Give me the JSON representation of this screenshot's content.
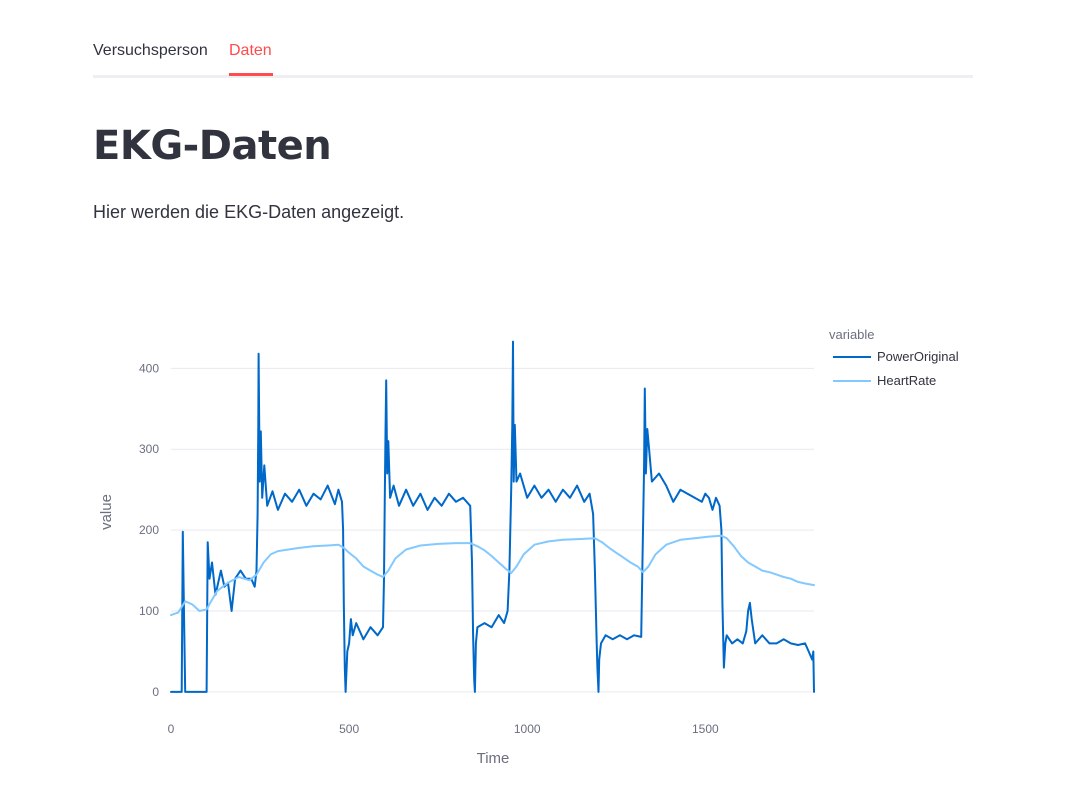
{
  "tabs": [
    {
      "label": "Versuchsperson",
      "active": false
    },
    {
      "label": "Daten",
      "active": true
    }
  ],
  "colors": {
    "accent": "#ff4b4b",
    "text": "#31333f",
    "power": "#0068c9",
    "heartrate": "#83c9ff",
    "grid": "#e6e9ef"
  },
  "main": {
    "title": "EKG-Daten",
    "text": "Hier werden die EKG-Daten angezeigt."
  },
  "chart_data": {
    "type": "line",
    "title": "",
    "xlabel": "Time",
    "ylabel": "value",
    "xlim": [
      0,
      1805
    ],
    "ylim": [
      -10,
      435
    ],
    "xticks": [
      0,
      500,
      1000,
      1500
    ],
    "yticks": [
      0,
      100,
      200,
      300,
      400
    ],
    "grid": true,
    "legend_title": "variable",
    "legend_position": "top-right",
    "series": [
      {
        "name": "PowerOriginal",
        "color": "#0068c9",
        "points": [
          [
            0,
            0
          ],
          [
            30,
            0
          ],
          [
            33,
            198
          ],
          [
            37,
            80
          ],
          [
            40,
            0
          ],
          [
            100,
            0
          ],
          [
            103,
            185
          ],
          [
            108,
            140
          ],
          [
            115,
            160
          ],
          [
            125,
            120
          ],
          [
            140,
            150
          ],
          [
            150,
            130
          ],
          [
            160,
            135
          ],
          [
            170,
            100
          ],
          [
            180,
            140
          ],
          [
            195,
            150
          ],
          [
            210,
            140
          ],
          [
            225,
            140
          ],
          [
            235,
            130
          ],
          [
            240,
            150
          ],
          [
            243,
            220
          ],
          [
            245,
            330
          ],
          [
            246,
            418
          ],
          [
            249,
            260
          ],
          [
            252,
            322
          ],
          [
            256,
            240
          ],
          [
            262,
            280
          ],
          [
            270,
            230
          ],
          [
            285,
            248
          ],
          [
            300,
            225
          ],
          [
            320,
            245
          ],
          [
            340,
            235
          ],
          [
            360,
            250
          ],
          [
            380,
            230
          ],
          [
            400,
            245
          ],
          [
            420,
            238
          ],
          [
            440,
            255
          ],
          [
            460,
            232
          ],
          [
            470,
            250
          ],
          [
            480,
            235
          ],
          [
            483,
            200
          ],
          [
            485,
            110
          ],
          [
            488,
            30
          ],
          [
            490,
            0
          ],
          [
            495,
            50
          ],
          [
            500,
            60
          ],
          [
            505,
            90
          ],
          [
            510,
            70
          ],
          [
            520,
            85
          ],
          [
            540,
            65
          ],
          [
            560,
            80
          ],
          [
            580,
            70
          ],
          [
            595,
            80
          ],
          [
            598,
            140
          ],
          [
            600,
            230
          ],
          [
            602,
            320
          ],
          [
            604,
            385
          ],
          [
            607,
            270
          ],
          [
            610,
            310
          ],
          [
            615,
            240
          ],
          [
            625,
            255
          ],
          [
            640,
            230
          ],
          [
            660,
            250
          ],
          [
            680,
            230
          ],
          [
            700,
            245
          ],
          [
            720,
            225
          ],
          [
            740,
            240
          ],
          [
            760,
            230
          ],
          [
            780,
            245
          ],
          [
            800,
            235
          ],
          [
            820,
            240
          ],
          [
            840,
            230
          ],
          [
            845,
            160
          ],
          [
            848,
            70
          ],
          [
            851,
            15
          ],
          [
            853,
            0
          ],
          [
            856,
            60
          ],
          [
            860,
            80
          ],
          [
            880,
            85
          ],
          [
            900,
            80
          ],
          [
            920,
            95
          ],
          [
            935,
            85
          ],
          [
            945,
            100
          ],
          [
            950,
            150
          ],
          [
            955,
            250
          ],
          [
            958,
            330
          ],
          [
            960,
            433
          ],
          [
            962,
            260
          ],
          [
            965,
            330
          ],
          [
            970,
            260
          ],
          [
            980,
            270
          ],
          [
            1000,
            240
          ],
          [
            1020,
            255
          ],
          [
            1040,
            240
          ],
          [
            1060,
            250
          ],
          [
            1080,
            235
          ],
          [
            1100,
            250
          ],
          [
            1120,
            240
          ],
          [
            1140,
            255
          ],
          [
            1160,
            235
          ],
          [
            1175,
            245
          ],
          [
            1185,
            220
          ],
          [
            1190,
            150
          ],
          [
            1195,
            60
          ],
          [
            1197,
            30
          ],
          [
            1200,
            0
          ],
          [
            1202,
            40
          ],
          [
            1207,
            60
          ],
          [
            1220,
            70
          ],
          [
            1240,
            65
          ],
          [
            1260,
            70
          ],
          [
            1280,
            65
          ],
          [
            1300,
            70
          ],
          [
            1320,
            68
          ],
          [
            1322,
            120
          ],
          [
            1325,
            200
          ],
          [
            1328,
            280
          ],
          [
            1330,
            375
          ],
          [
            1333,
            270
          ],
          [
            1337,
            325
          ],
          [
            1342,
            300
          ],
          [
            1350,
            260
          ],
          [
            1370,
            270
          ],
          [
            1390,
            255
          ],
          [
            1410,
            235
          ],
          [
            1430,
            250
          ],
          [
            1450,
            245
          ],
          [
            1470,
            240
          ],
          [
            1490,
            235
          ],
          [
            1500,
            245
          ],
          [
            1510,
            240
          ],
          [
            1520,
            225
          ],
          [
            1530,
            240
          ],
          [
            1540,
            230
          ],
          [
            1545,
            200
          ],
          [
            1548,
            110
          ],
          [
            1552,
            30
          ],
          [
            1556,
            60
          ],
          [
            1560,
            70
          ],
          [
            1575,
            60
          ],
          [
            1590,
            65
          ],
          [
            1605,
            60
          ],
          [
            1615,
            75
          ],
          [
            1620,
            100
          ],
          [
            1625,
            110
          ],
          [
            1630,
            90
          ],
          [
            1640,
            60
          ],
          [
            1660,
            70
          ],
          [
            1680,
            60
          ],
          [
            1700,
            60
          ],
          [
            1720,
            65
          ],
          [
            1740,
            60
          ],
          [
            1760,
            58
          ],
          [
            1780,
            60
          ],
          [
            1790,
            50
          ],
          [
            1800,
            40
          ],
          [
            1803,
            50
          ],
          [
            1805,
            0
          ]
        ]
      },
      {
        "name": "HeartRate",
        "color": "#83c9ff",
        "points": [
          [
            0,
            95
          ],
          [
            20,
            98
          ],
          [
            30,
            105
          ],
          [
            40,
            112
          ],
          [
            60,
            108
          ],
          [
            80,
            100
          ],
          [
            100,
            102
          ],
          [
            110,
            110
          ],
          [
            130,
            125
          ],
          [
            160,
            135
          ],
          [
            190,
            142
          ],
          [
            220,
            138
          ],
          [
            240,
            145
          ],
          [
            260,
            160
          ],
          [
            280,
            170
          ],
          [
            300,
            174
          ],
          [
            330,
            176
          ],
          [
            360,
            178
          ],
          [
            400,
            180
          ],
          [
            440,
            181
          ],
          [
            470,
            182
          ],
          [
            485,
            178
          ],
          [
            500,
            172
          ],
          [
            520,
            165
          ],
          [
            540,
            155
          ],
          [
            560,
            150
          ],
          [
            580,
            145
          ],
          [
            595,
            142
          ],
          [
            610,
            150
          ],
          [
            630,
            165
          ],
          [
            660,
            176
          ],
          [
            700,
            181
          ],
          [
            750,
            183
          ],
          [
            800,
            184
          ],
          [
            840,
            184
          ],
          [
            860,
            180
          ],
          [
            880,
            175
          ],
          [
            900,
            168
          ],
          [
            920,
            160
          ],
          [
            940,
            152
          ],
          [
            955,
            147
          ],
          [
            970,
            155
          ],
          [
            990,
            170
          ],
          [
            1020,
            182
          ],
          [
            1060,
            186
          ],
          [
            1100,
            188
          ],
          [
            1150,
            189
          ],
          [
            1190,
            190
          ],
          [
            1210,
            185
          ],
          [
            1230,
            178
          ],
          [
            1250,
            172
          ],
          [
            1270,
            166
          ],
          [
            1290,
            160
          ],
          [
            1310,
            155
          ],
          [
            1325,
            148
          ],
          [
            1340,
            155
          ],
          [
            1360,
            170
          ],
          [
            1390,
            182
          ],
          [
            1430,
            188
          ],
          [
            1470,
            190
          ],
          [
            1510,
            192
          ],
          [
            1545,
            193
          ],
          [
            1560,
            190
          ],
          [
            1580,
            180
          ],
          [
            1600,
            168
          ],
          [
            1620,
            160
          ],
          [
            1640,
            155
          ],
          [
            1660,
            150
          ],
          [
            1680,
            148
          ],
          [
            1700,
            145
          ],
          [
            1720,
            142
          ],
          [
            1740,
            140
          ],
          [
            1760,
            136
          ],
          [
            1780,
            134
          ],
          [
            1805,
            132
          ]
        ]
      }
    ]
  }
}
